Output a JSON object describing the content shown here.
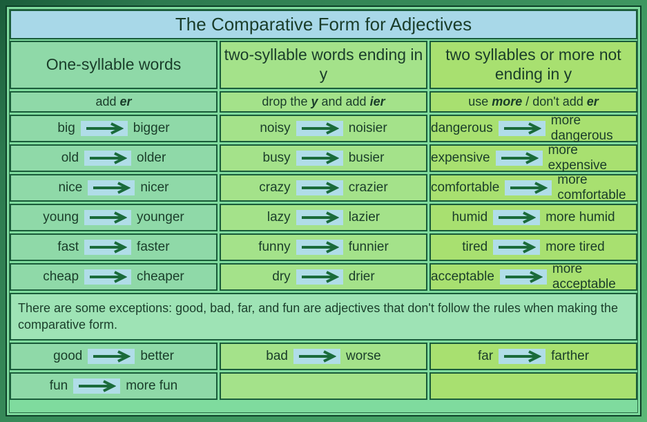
{
  "title": "The Comparative Form for Adjectives",
  "columns": [
    {
      "header": "One-syllable words",
      "rule_html": "add <b><i>er</i></b>",
      "rows": [
        {
          "from": "big",
          "to": "bigger"
        },
        {
          "from": "old",
          "to": "older"
        },
        {
          "from": "nice",
          "to": "nicer"
        },
        {
          "from": "young",
          "to": "younger"
        },
        {
          "from": "fast",
          "to": "faster"
        },
        {
          "from": "cheap",
          "to": "cheaper"
        }
      ]
    },
    {
      "header": "two-syllable words ending in y",
      "rule_html": "drop the <b><i>y</i></b> and add <b><i>ier</i></b>",
      "rows": [
        {
          "from": "noisy",
          "to": "noisier"
        },
        {
          "from": "busy",
          "to": "busier"
        },
        {
          "from": "crazy",
          "to": "crazier"
        },
        {
          "from": "lazy",
          "to": "lazier"
        },
        {
          "from": "funny",
          "to": "funnier"
        },
        {
          "from": "dry",
          "to": "drier"
        }
      ]
    },
    {
      "header": "two syllables or more not ending in y",
      "rule_html": "use <b><i>more</i></b> / don't add <b><i>er</i></b>",
      "rows": [
        {
          "from": "dangerous",
          "to": "more dangerous"
        },
        {
          "from": "expensive",
          "to": "more expensive"
        },
        {
          "from": "comfortable",
          "to": "more comfortable"
        },
        {
          "from": "humid",
          "to": "more humid"
        },
        {
          "from": "tired",
          "to": "more tired"
        },
        {
          "from": "acceptable",
          "to": "more acceptable"
        }
      ]
    }
  ],
  "note": "There are some exceptions: good, bad, far, and fun are adjectives that don't follow the rules when making the comparative form.",
  "exceptions": [
    [
      {
        "from": "good",
        "to": "better"
      },
      {
        "from": "bad",
        "to": "worse"
      },
      {
        "from": "far",
        "to": "farther"
      }
    ],
    [
      {
        "from": "fun",
        "to": "more fun"
      },
      null,
      null
    ]
  ],
  "colors": {
    "title_bg": "#a8d8e8",
    "border": "#1a5c3a",
    "text": "#1a3d2a",
    "col1_bg": "#8fd9a8",
    "col2_bg": "#a4e28a",
    "col3_bg": "#a8e070",
    "note_bg": "#9ee3b5",
    "arrow_bg": "#b0dde8",
    "arrow_stroke": "#1a6b3a"
  },
  "arrow": {
    "width": 56,
    "height": 18,
    "stroke_width": 4
  }
}
